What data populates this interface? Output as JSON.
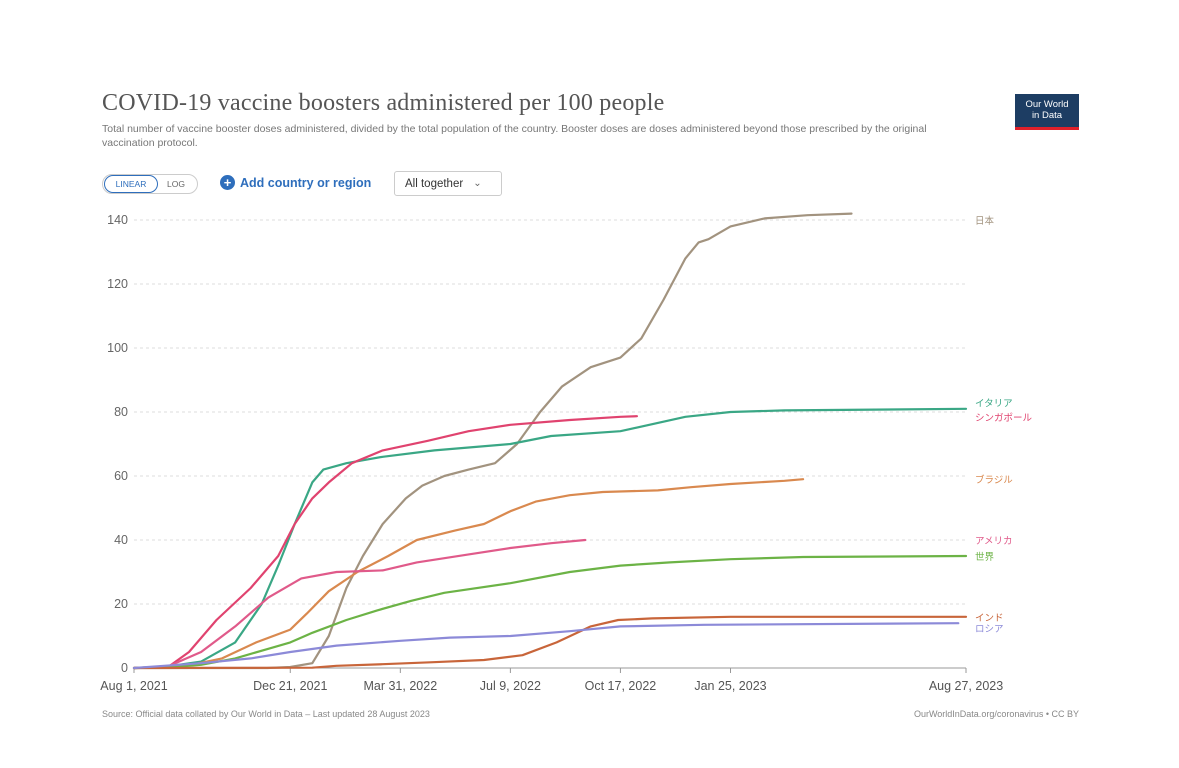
{
  "header": {
    "title": "COVID-19 vaccine boosters administered per 100 people",
    "subtitle": "Total number of vaccine booster doses administered, divided by the total population of the country. Booster doses are doses administered beyond those prescribed by the original vaccination protocol.",
    "logo_line1": "Our World",
    "logo_line2": "in Data"
  },
  "controls": {
    "linear_label": "LINEAR",
    "log_label": "LOG",
    "add_country_label": "Add country or region",
    "add_icon": "plus-circle-icon",
    "dropdown_value": "All together",
    "dropdown_icon": "chevron-down-icon"
  },
  "footer": {
    "source": "Source: Official data collated by Our World in Data – Last updated 28 August 2023",
    "credit": "OurWorldInData.org/coronavirus • CC BY"
  },
  "colors": {
    "accent": "#2e6ebc",
    "logo_bg": "#1d3d63",
    "logo_stripe": "#e0202a"
  },
  "chart_data": {
    "type": "line",
    "title": "COVID-19 vaccine boosters administered per 100 people",
    "xlabel": "",
    "ylabel": "",
    "x_axis": "date",
    "x_ticks": [
      "Aug 1, 2021",
      "Dec 21, 2021",
      "Mar 31, 2022",
      "Jul 9, 2022",
      "Oct 17, 2022",
      "Jan 25, 2023",
      "Aug 27, 2023"
    ],
    "x_range": [
      "2021-08-01",
      "2023-08-27"
    ],
    "y_ticks": [
      0,
      20,
      40,
      60,
      80,
      100,
      120,
      140
    ],
    "ylim": [
      0,
      140
    ],
    "grid": "horizontal dashed",
    "legend": "line-end labels on the right",
    "series": [
      {
        "name": "日本",
        "color": "#a2937f",
        "points": [
          [
            "2021-08-01",
            0
          ],
          [
            "2021-11-30",
            0
          ],
          [
            "2021-12-21",
            0.3
          ],
          [
            "2022-01-10",
            1.5
          ],
          [
            "2022-01-25",
            10
          ],
          [
            "2022-02-10",
            25
          ],
          [
            "2022-02-25",
            35
          ],
          [
            "2022-03-15",
            45
          ],
          [
            "2022-04-05",
            53
          ],
          [
            "2022-04-20",
            57
          ],
          [
            "2022-05-10",
            60
          ],
          [
            "2022-06-01",
            62
          ],
          [
            "2022-06-25",
            64
          ],
          [
            "2022-07-15",
            70
          ],
          [
            "2022-08-05",
            80
          ],
          [
            "2022-08-25",
            88
          ],
          [
            "2022-09-20",
            94
          ],
          [
            "2022-10-17",
            97
          ],
          [
            "2022-11-05",
            103
          ],
          [
            "2022-11-25",
            115
          ],
          [
            "2022-12-15",
            128
          ],
          [
            "2022-12-27",
            133
          ],
          [
            "2023-01-05",
            134
          ],
          [
            "2023-01-25",
            138
          ],
          [
            "2023-02-25",
            140.5
          ],
          [
            "2023-04-05",
            141.5
          ],
          [
            "2023-05-15",
            142
          ]
        ],
        "end_label": "日本",
        "label_value": 140
      },
      {
        "name": "イタリア",
        "color": "#3aa785",
        "points": [
          [
            "2021-08-01",
            0
          ],
          [
            "2021-09-01",
            0.5
          ],
          [
            "2021-10-01",
            2
          ],
          [
            "2021-11-01",
            8
          ],
          [
            "2021-11-25",
            20
          ],
          [
            "2021-12-10",
            32
          ],
          [
            "2021-12-25",
            45
          ],
          [
            "2022-01-10",
            58
          ],
          [
            "2022-01-20",
            62
          ],
          [
            "2022-02-10",
            64
          ],
          [
            "2022-03-15",
            66
          ],
          [
            "2022-05-01",
            68
          ],
          [
            "2022-07-09",
            70
          ],
          [
            "2022-08-15",
            72.5
          ],
          [
            "2022-10-17",
            74
          ],
          [
            "2022-12-15",
            78.5
          ],
          [
            "2023-01-25",
            80
          ],
          [
            "2023-03-15",
            80.5
          ],
          [
            "2023-08-27",
            81
          ]
        ],
        "end_label": "イタリア",
        "label_value": 83
      },
      {
        "name": "シンガポール",
        "color": "#e0436f",
        "points": [
          [
            "2021-08-01",
            0
          ],
          [
            "2021-09-01",
            0.3
          ],
          [
            "2021-09-20",
            5
          ],
          [
            "2021-10-15",
            15
          ],
          [
            "2021-11-15",
            25
          ],
          [
            "2021-12-10",
            35
          ],
          [
            "2021-12-25",
            45
          ],
          [
            "2022-01-10",
            53
          ],
          [
            "2022-01-25",
            58
          ],
          [
            "2022-02-15",
            64
          ],
          [
            "2022-03-15",
            68
          ],
          [
            "2022-04-25",
            71
          ],
          [
            "2022-06-01",
            74
          ],
          [
            "2022-07-09",
            76
          ],
          [
            "2022-09-01",
            77.5
          ],
          [
            "2022-10-17",
            78.5
          ],
          [
            "2022-11-01",
            78.7
          ]
        ],
        "end_label": "シンガポール",
        "label_value": 78.5
      },
      {
        "name": "ブラジル",
        "color": "#d9894f",
        "points": [
          [
            "2021-08-01",
            0
          ],
          [
            "2021-09-15",
            0.5
          ],
          [
            "2021-10-20",
            3
          ],
          [
            "2021-11-20",
            8
          ],
          [
            "2021-12-21",
            12
          ],
          [
            "2022-01-05",
            17
          ],
          [
            "2022-01-25",
            24
          ],
          [
            "2022-02-20",
            30
          ],
          [
            "2022-03-20",
            35
          ],
          [
            "2022-04-15",
            40
          ],
          [
            "2022-05-20",
            43
          ],
          [
            "2022-06-15",
            45
          ],
          [
            "2022-07-09",
            49
          ],
          [
            "2022-08-01",
            52
          ],
          [
            "2022-09-01",
            54
          ],
          [
            "2022-10-01",
            55
          ],
          [
            "2022-11-20",
            55.5
          ],
          [
            "2022-12-20",
            56.5
          ],
          [
            "2023-01-25",
            57.5
          ],
          [
            "2023-03-15",
            58.5
          ],
          [
            "2023-04-01",
            59
          ]
        ],
        "end_label": "ブラジル",
        "label_value": 59
      },
      {
        "name": "アメリカ",
        "color": "#e05a8a",
        "points": [
          [
            "2021-08-01",
            0
          ],
          [
            "2021-09-01",
            0.5
          ],
          [
            "2021-10-01",
            5
          ],
          [
            "2021-11-01",
            13
          ],
          [
            "2021-12-01",
            22
          ],
          [
            "2021-12-31",
            28
          ],
          [
            "2022-02-01",
            30
          ],
          [
            "2022-03-15",
            30.5
          ],
          [
            "2022-04-15",
            33
          ],
          [
            "2022-06-01",
            35.5
          ],
          [
            "2022-07-09",
            37.5
          ],
          [
            "2022-08-15",
            39
          ],
          [
            "2022-09-15",
            40
          ]
        ],
        "end_label": "アメリカ",
        "label_value": 40
      },
      {
        "name": "世界",
        "color": "#6cb346",
        "points": [
          [
            "2021-08-01",
            0
          ],
          [
            "2021-09-01",
            0.2
          ],
          [
            "2021-10-01",
            1
          ],
          [
            "2021-11-01",
            3
          ],
          [
            "2021-12-01",
            6
          ],
          [
            "2021-12-21",
            8
          ],
          [
            "2022-01-10",
            11
          ],
          [
            "2022-02-10",
            15
          ],
          [
            "2022-03-10",
            18
          ],
          [
            "2022-04-10",
            21
          ],
          [
            "2022-05-10",
            23.5
          ],
          [
            "2022-07-09",
            26.5
          ],
          [
            "2022-09-01",
            30
          ],
          [
            "2022-10-17",
            32
          ],
          [
            "2022-12-01",
            33
          ],
          [
            "2023-01-25",
            34
          ],
          [
            "2023-04-01",
            34.7
          ],
          [
            "2023-08-27",
            35
          ]
        ],
        "end_label": "世界",
        "label_value": 35
      },
      {
        "name": "インド",
        "color": "#c8653a",
        "points": [
          [
            "2021-08-01",
            0
          ],
          [
            "2022-01-10",
            0.1
          ],
          [
            "2022-02-01",
            0.7
          ],
          [
            "2022-03-15",
            1.2
          ],
          [
            "2022-04-30",
            1.8
          ],
          [
            "2022-06-15",
            2.5
          ],
          [
            "2022-07-20",
            4
          ],
          [
            "2022-08-20",
            8
          ],
          [
            "2022-09-20",
            13
          ],
          [
            "2022-10-15",
            15
          ],
          [
            "2022-11-15",
            15.5
          ],
          [
            "2023-01-25",
            16
          ],
          [
            "2023-08-27",
            16
          ]
        ],
        "end_label": "インド",
        "label_value": 16
      },
      {
        "name": "ロシア",
        "color": "#8c8ad8",
        "points": [
          [
            "2021-08-01",
            0
          ],
          [
            "2021-10-01",
            1.5
          ],
          [
            "2021-11-15",
            3
          ],
          [
            "2021-12-21",
            5
          ],
          [
            "2022-02-01",
            7
          ],
          [
            "2022-03-31",
            8.5
          ],
          [
            "2022-05-15",
            9.5
          ],
          [
            "2022-07-09",
            10
          ],
          [
            "2022-09-01",
            11.5
          ],
          [
            "2022-10-17",
            13
          ],
          [
            "2023-01-01",
            13.5
          ],
          [
            "2023-08-20",
            14
          ]
        ],
        "end_label": "ロシア",
        "label_value": 12.5
      }
    ]
  }
}
